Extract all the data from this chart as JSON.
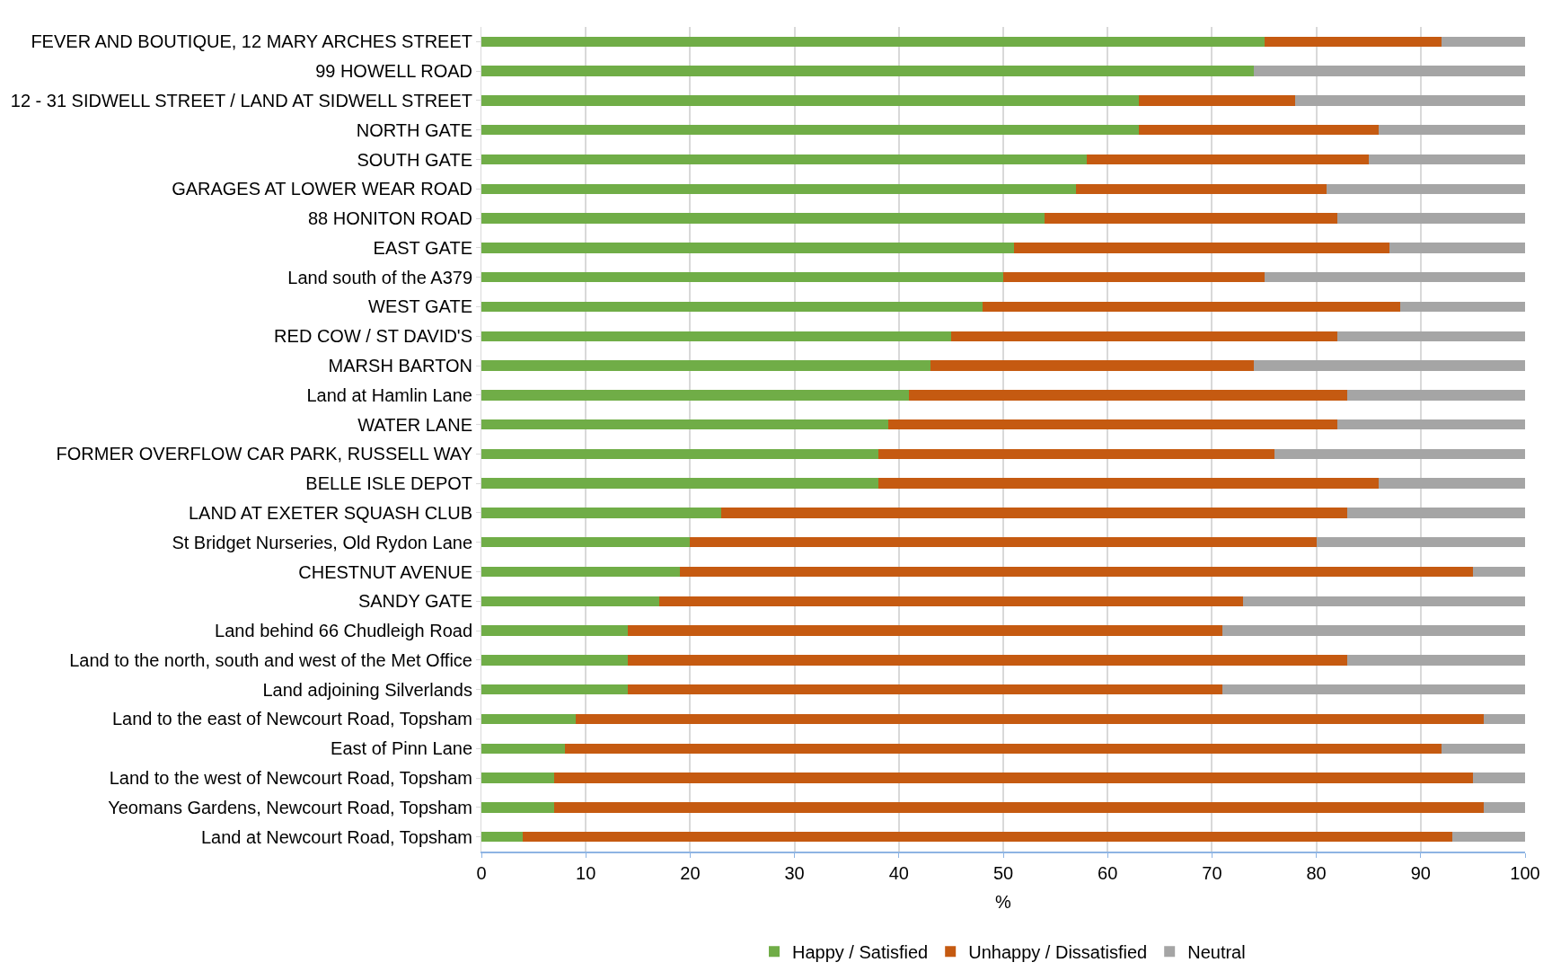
{
  "chart_data": {
    "type": "bar",
    "orientation": "horizontal",
    "stacked": true,
    "xlabel": "%",
    "categories": [
      "FEVER AND BOUTIQUE, 12 MARY ARCHES STREET",
      "99 HOWELL ROAD",
      "12 - 31 SIDWELL STREET / LAND AT SIDWELL STREET",
      "NORTH GATE",
      "SOUTH GATE",
      "GARAGES AT LOWER WEAR ROAD",
      "88 HONITON ROAD",
      "EAST GATE",
      "Land south of the A379",
      "WEST GATE",
      "RED COW / ST DAVID'S",
      "MARSH BARTON",
      "Land at Hamlin Lane",
      "WATER LANE",
      "FORMER OVERFLOW CAR PARK, RUSSELL WAY",
      "BELLE ISLE DEPOT",
      "LAND AT EXETER SQUASH CLUB",
      "St Bridget Nurseries, Old Rydon Lane",
      "CHESTNUT AVENUE",
      "SANDY GATE",
      "Land behind 66 Chudleigh Road",
      "Land to the north, south and west of the Met Office",
      "Land adjoining Silverlands",
      "Land to the east of Newcourt Road, Topsham",
      "East of Pinn Lane",
      "Land to the west of Newcourt Road, Topsham",
      "Yeomans Gardens, Newcourt Road, Topsham",
      "Land at Newcourt Road, Topsham"
    ],
    "series": [
      {
        "name": "Happy / Satisfied",
        "color": "#70ad47",
        "values": [
          75,
          74,
          63,
          63,
          58,
          57,
          54,
          51,
          50,
          48,
          45,
          43,
          41,
          39,
          38,
          38,
          23,
          20,
          19,
          17,
          14,
          14,
          14,
          9,
          8,
          7,
          7,
          4
        ]
      },
      {
        "name": "Unhappy / Dissatisfied",
        "color": "#c55a11",
        "values": [
          17,
          0,
          15,
          23,
          27,
          24,
          28,
          36,
          25,
          40,
          37,
          31,
          42,
          43,
          38,
          48,
          60,
          60,
          76,
          56,
          57,
          69,
          57,
          87,
          84,
          88,
          89,
          89
        ]
      },
      {
        "name": "Neutral",
        "color": "#a5a5a5",
        "values": [
          8,
          26,
          22,
          14,
          15,
          19,
          18,
          13,
          25,
          12,
          18,
          26,
          17,
          18,
          24,
          14,
          17,
          20,
          5,
          27,
          29,
          17,
          29,
          4,
          8,
          5,
          4,
          7
        ]
      }
    ],
    "xlim": [
      0,
      100
    ],
    "xticks": [
      0,
      10,
      20,
      30,
      40,
      50,
      60,
      70,
      80,
      90,
      100
    ],
    "grid": "x",
    "legend": "bottom"
  }
}
